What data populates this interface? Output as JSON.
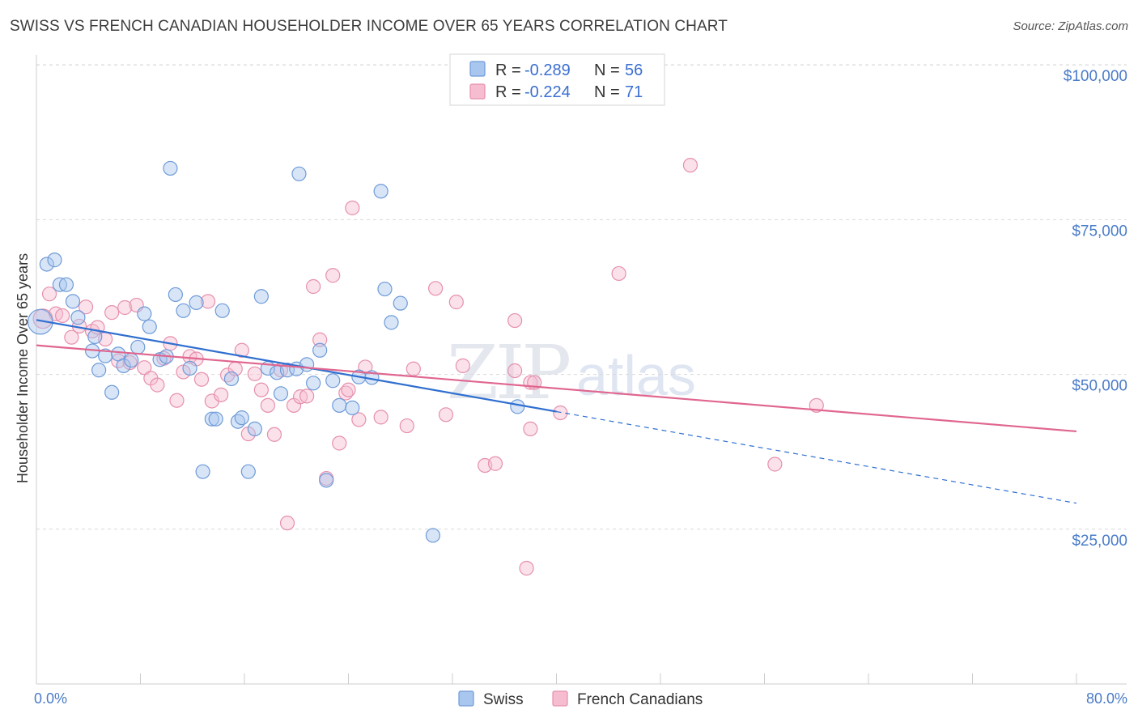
{
  "title": "SWISS VS FRENCH CANADIAN HOUSEHOLDER INCOME OVER 65 YEARS CORRELATION CHART",
  "source": "Source: ZipAtlas.com",
  "watermark": {
    "zip": "ZIP",
    "atlas": "atlas"
  },
  "colors": {
    "swiss_fill": "#a9c6ee",
    "swiss_stroke": "#6f9bd8",
    "swiss_line": "#2f6fd0",
    "fc_fill": "#f6bcd0",
    "fc_stroke": "#e690ae",
    "fc_line": "#e0668f",
    "grid": "#d9d9d9",
    "axis_text": "#4a7cc9"
  },
  "legend": {
    "rows": [
      {
        "r_label": "R =",
        "r_value": "-0.289",
        "n_label": "N =",
        "n_value": "56"
      },
      {
        "r_label": "R =",
        "r_value": "-0.224",
        "n_label": "N =",
        "n_value": "71"
      }
    ]
  },
  "bottom_legend": [
    "Swiss",
    "French Canadians"
  ],
  "chart_data": {
    "type": "scatter",
    "title": "SWISS VS FRENCH CANADIAN HOUSEHOLDER INCOME OVER 65 YEARS CORRELATION CHART",
    "xlabel": "",
    "ylabel": "Householder Income Over 65 years",
    "xlim": [
      0,
      80
    ],
    "ylim": [
      0,
      105000
    ],
    "x_tick_labels": [
      "0.0%",
      "80.0%"
    ],
    "y_ticks": [
      {
        "value": 25000,
        "label": "$25,000"
      },
      {
        "value": 50000,
        "label": "$50,000"
      },
      {
        "value": 75000,
        "label": "$75,000"
      },
      {
        "value": 100000,
        "label": "$100,000"
      }
    ],
    "grid": "horizontal dashed",
    "legend_position": "top-center",
    "series": [
      {
        "name": "Swiss",
        "stats": {
          "R": -0.289,
          "N": 56
        },
        "trend": {
          "x0": 0,
          "y0": 58800,
          "x1": 40,
          "y1": 44000,
          "dash_to_x": 80,
          "dash_to_y": 29200
        },
        "points": [
          [
            0.3,
            58500,
            18
          ],
          [
            0.8,
            67800,
            10
          ],
          [
            1.4,
            68500,
            10
          ],
          [
            1.8,
            64500,
            10
          ],
          [
            2.3,
            64500,
            10
          ],
          [
            2.8,
            61800,
            10
          ],
          [
            3.2,
            59200,
            10
          ],
          [
            4.3,
            53800,
            10
          ],
          [
            4.5,
            56100,
            10
          ],
          [
            4.8,
            50700,
            10
          ],
          [
            5.3,
            53000,
            10
          ],
          [
            5.8,
            47100,
            10
          ],
          [
            6.3,
            53300,
            10
          ],
          [
            6.7,
            51400,
            10
          ],
          [
            7.3,
            52300,
            10
          ],
          [
            7.8,
            54400,
            10
          ],
          [
            8.3,
            59800,
            10
          ],
          [
            8.7,
            57700,
            10
          ],
          [
            9.5,
            52400,
            10
          ],
          [
            10.0,
            52900,
            10
          ],
          [
            10.3,
            83300,
            10
          ],
          [
            10.7,
            62900,
            10
          ],
          [
            11.3,
            60300,
            10
          ],
          [
            11.8,
            51000,
            10
          ],
          [
            12.3,
            61600,
            10
          ],
          [
            12.8,
            34300,
            10
          ],
          [
            13.5,
            42800,
            10
          ],
          [
            13.8,
            42800,
            10
          ],
          [
            14.3,
            60300,
            10
          ],
          [
            15.0,
            49300,
            10
          ],
          [
            15.5,
            42400,
            10
          ],
          [
            15.8,
            43000,
            10
          ],
          [
            16.3,
            34300,
            10
          ],
          [
            16.8,
            41200,
            10
          ],
          [
            17.3,
            62600,
            10
          ],
          [
            17.8,
            51000,
            10
          ],
          [
            18.5,
            50300,
            10
          ],
          [
            18.8,
            46900,
            10
          ],
          [
            19.3,
            50700,
            10
          ],
          [
            20.0,
            50900,
            10
          ],
          [
            20.2,
            82400,
            10
          ],
          [
            20.8,
            51600,
            10
          ],
          [
            21.3,
            48600,
            10
          ],
          [
            21.8,
            53900,
            10
          ],
          [
            22.3,
            32900,
            10
          ],
          [
            22.8,
            49000,
            10
          ],
          [
            23.3,
            45000,
            10
          ],
          [
            24.3,
            44600,
            10
          ],
          [
            24.8,
            49600,
            10
          ],
          [
            25.8,
            49500,
            10
          ],
          [
            26.5,
            79600,
            10
          ],
          [
            26.8,
            63800,
            10
          ],
          [
            27.3,
            58400,
            10
          ],
          [
            28.0,
            61500,
            10
          ],
          [
            30.5,
            24000,
            10
          ],
          [
            37.0,
            44800,
            10
          ]
        ]
      },
      {
        "name": "French Canadians",
        "stats": {
          "R": -0.224,
          "N": 71
        },
        "trend": {
          "x0": 0,
          "y0": 54700,
          "x1": 80,
          "y1": 40800
        },
        "points": [
          [
            0.5,
            59000,
            14
          ],
          [
            1.0,
            63000,
            10
          ],
          [
            1.5,
            59800,
            10
          ],
          [
            2.0,
            59500,
            10
          ],
          [
            2.7,
            56000,
            10
          ],
          [
            3.3,
            57800,
            10
          ],
          [
            3.8,
            60900,
            10
          ],
          [
            4.3,
            57000,
            10
          ],
          [
            4.7,
            57600,
            10
          ],
          [
            5.3,
            55700,
            10
          ],
          [
            5.8,
            60000,
            10
          ],
          [
            6.3,
            52200,
            10
          ],
          [
            6.8,
            60800,
            10
          ],
          [
            7.2,
            51900,
            10
          ],
          [
            7.7,
            61200,
            10
          ],
          [
            8.3,
            51100,
            10
          ],
          [
            8.8,
            49400,
            10
          ],
          [
            9.3,
            48300,
            10
          ],
          [
            9.8,
            52600,
            10
          ],
          [
            10.3,
            55000,
            10
          ],
          [
            10.8,
            45800,
            10
          ],
          [
            11.3,
            50400,
            10
          ],
          [
            11.8,
            52900,
            10
          ],
          [
            12.3,
            52500,
            10
          ],
          [
            12.7,
            49200,
            10
          ],
          [
            13.2,
            61800,
            10
          ],
          [
            13.5,
            45700,
            10
          ],
          [
            14.2,
            46700,
            10
          ],
          [
            14.7,
            49900,
            10
          ],
          [
            15.3,
            50900,
            10
          ],
          [
            15.8,
            53900,
            10
          ],
          [
            16.3,
            40400,
            10
          ],
          [
            16.8,
            50100,
            10
          ],
          [
            17.3,
            47500,
            10
          ],
          [
            17.8,
            45000,
            10
          ],
          [
            18.3,
            40300,
            10
          ],
          [
            18.8,
            50700,
            10
          ],
          [
            19.3,
            26000,
            10
          ],
          [
            19.8,
            45000,
            10
          ],
          [
            20.3,
            46400,
            10
          ],
          [
            20.8,
            46500,
            10
          ],
          [
            21.3,
            64200,
            10
          ],
          [
            21.8,
            55600,
            10
          ],
          [
            22.3,
            33200,
            10
          ],
          [
            22.8,
            66000,
            10
          ],
          [
            23.3,
            38900,
            10
          ],
          [
            23.8,
            47000,
            10
          ],
          [
            24.3,
            76900,
            10
          ],
          [
            24.8,
            42700,
            10
          ],
          [
            25.3,
            51200,
            10
          ],
          [
            26.5,
            43100,
            10
          ],
          [
            28.5,
            41700,
            10
          ],
          [
            29.0,
            50900,
            10
          ],
          [
            30.7,
            63900,
            10
          ],
          [
            31.5,
            43500,
            10
          ],
          [
            32.3,
            61700,
            10
          ],
          [
            32.8,
            51400,
            10
          ],
          [
            34.5,
            35300,
            10
          ],
          [
            35.3,
            35600,
            10
          ],
          [
            36.8,
            58700,
            10
          ],
          [
            36.8,
            50600,
            10
          ],
          [
            37.7,
            18700,
            10
          ],
          [
            38.0,
            48700,
            10
          ],
          [
            38.3,
            48700,
            10
          ],
          [
            40.3,
            43800,
            10
          ],
          [
            44.8,
            66300,
            10
          ],
          [
            50.3,
            83800,
            10
          ],
          [
            56.8,
            35500,
            10
          ],
          [
            60.0,
            45000,
            10
          ],
          [
            38.0,
            41200,
            10
          ],
          [
            24.0,
            47500,
            10
          ]
        ]
      }
    ]
  }
}
